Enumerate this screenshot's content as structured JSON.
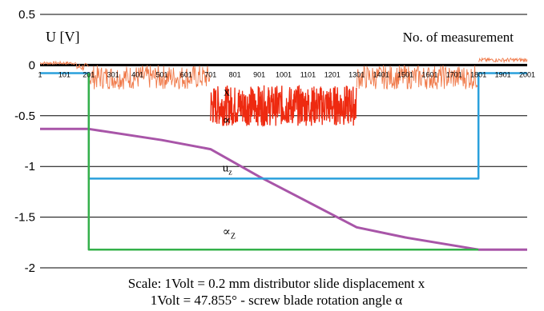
{
  "chart_data": {
    "type": "line",
    "y_axis_label": "U [V]",
    "x_axis_label": "No. of measurement",
    "ylim": [
      -2,
      0.5
    ],
    "xlim": [
      1,
      2001
    ],
    "y_ticks": [
      "0.5",
      "0",
      "-0.5",
      "-1",
      "-1.5",
      "-2"
    ],
    "y_tick_values": [
      0.5,
      0,
      -0.5,
      -1,
      -1.5,
      -2
    ],
    "x_ticks": [
      "1",
      "101",
      "201",
      "301",
      "401",
      "501",
      "601",
      "701",
      "801",
      "901",
      "1001",
      "1101",
      "1201",
      "1301",
      "1401",
      "1501",
      "1601",
      "1701",
      "1801",
      "1901",
      "2001"
    ],
    "x_tick_values": [
      1,
      101,
      201,
      301,
      401,
      501,
      601,
      701,
      801,
      901,
      1001,
      1101,
      1201,
      1301,
      1401,
      1501,
      1601,
      1701,
      1801,
      1901,
      2001
    ],
    "grid": true,
    "colors": {
      "x": "#f07a4a",
      "x_dense": "#ee2a10",
      "alpha": "#a855a8",
      "u_z": "#2aa0dc",
      "alpha_z": "#34b04a",
      "zero_line": "#000000",
      "grid": "#000000"
    },
    "series": [
      {
        "name": "x",
        "key": "x",
        "segments": [
          {
            "x_from": 1,
            "x_to": 150,
            "base": 0.02,
            "amp": 0.015
          },
          {
            "x_from": 150,
            "x_to": 201,
            "base": -0.02,
            "amp": 0.04
          },
          {
            "x_from": 201,
            "x_to": 701,
            "base": -0.12,
            "amp": 0.12
          },
          {
            "x_from": 701,
            "x_to": 1301,
            "base": -0.4,
            "amp": 0.2
          },
          {
            "x_from": 1301,
            "x_to": 1801,
            "base": -0.12,
            "amp": 0.12
          },
          {
            "x_from": 1801,
            "x_to": 2001,
            "base": 0.05,
            "amp": 0.02
          }
        ]
      },
      {
        "name": "∝",
        "key": "alpha",
        "x": [
          1,
          201,
          501,
          701,
          901,
          1101,
          1301,
          1501,
          1801,
          2001
        ],
        "y": [
          -0.63,
          -0.63,
          -0.74,
          -0.83,
          -1.1,
          -1.35,
          -1.6,
          -1.7,
          -1.82,
          -1.82
        ]
      },
      {
        "name": "u",
        "subscript": "z",
        "key": "u_z",
        "x": [
          1,
          201,
          201,
          1801,
          1801,
          2001
        ],
        "y": [
          -0.08,
          -0.08,
          -1.12,
          -1.12,
          -0.08,
          -0.08
        ]
      },
      {
        "name": "∝",
        "subscript": "Z",
        "key": "alpha_z",
        "x": [
          201,
          201,
          1801
        ],
        "y": [
          -0.08,
          -1.82,
          -1.82
        ]
      }
    ],
    "annotations": [
      {
        "key": "x",
        "text": "x",
        "x": 755,
        "y": -0.3
      },
      {
        "key": "alpha",
        "text": "∝",
        "x": 750,
        "y": -0.58
      },
      {
        "key": "u_z",
        "text": "u",
        "sub": "z",
        "x": 750,
        "y": -1.05
      },
      {
        "key": "alpha_z",
        "text": "∝",
        "sub": "Z",
        "x": 750,
        "y": -1.68
      }
    ]
  },
  "caption": {
    "line1": "Scale: 1Volt = 0.2 mm  distributor slide displacement x",
    "line2": "1Volt = 47.855° - screw blade rotation angle α"
  }
}
